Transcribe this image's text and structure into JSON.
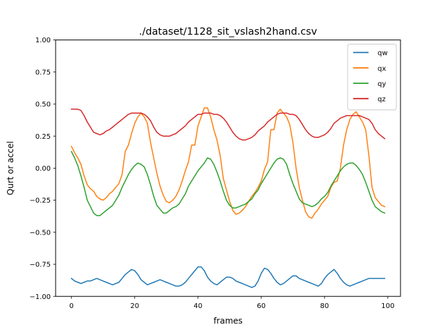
{
  "chart_data": {
    "type": "line",
    "title": "./dataset/1128_sit_vslash2hand.csv",
    "xlabel": "frames",
    "ylabel": "Qurt or accel",
    "xlim": [
      -5,
      104
    ],
    "ylim": [
      -1.0,
      1.0
    ],
    "xticks": [
      0,
      20,
      40,
      60,
      80,
      100
    ],
    "xtick_labels": [
      "0",
      "20",
      "40",
      "60",
      "80",
      "100"
    ],
    "yticks": [
      -1.0,
      -0.75,
      -0.5,
      -0.25,
      0.0,
      0.25,
      0.5,
      0.75,
      1.0
    ],
    "ytick_labels": [
      "−1.00",
      "−0.75",
      "−0.50",
      "−0.25",
      "0.00",
      "0.25",
      "0.50",
      "0.75",
      "1.00"
    ],
    "grid": false,
    "legend_position": "top-right",
    "x": [
      0,
      1,
      2,
      3,
      4,
      5,
      6,
      7,
      8,
      9,
      10,
      11,
      12,
      13,
      14,
      15,
      16,
      17,
      18,
      19,
      20,
      21,
      22,
      23,
      24,
      25,
      26,
      27,
      28,
      29,
      30,
      31,
      32,
      33,
      34,
      35,
      36,
      37,
      38,
      39,
      40,
      41,
      42,
      43,
      44,
      45,
      46,
      47,
      48,
      49,
      50,
      51,
      52,
      53,
      54,
      55,
      56,
      57,
      58,
      59,
      60,
      61,
      62,
      63,
      64,
      65,
      66,
      67,
      68,
      69,
      70,
      71,
      72,
      73,
      74,
      75,
      76,
      77,
      78,
      79,
      80,
      81,
      82,
      83,
      84,
      85,
      86,
      87,
      88,
      89,
      90,
      91,
      92,
      93,
      94,
      95,
      96,
      97,
      98,
      99
    ],
    "series": [
      {
        "name": "qw",
        "color": "#1f77b4",
        "values": [
          -0.86,
          -0.88,
          -0.89,
          -0.9,
          -0.89,
          -0.88,
          -0.88,
          -0.87,
          -0.86,
          -0.87,
          -0.88,
          -0.89,
          -0.9,
          -0.91,
          -0.9,
          -0.89,
          -0.86,
          -0.83,
          -0.81,
          -0.79,
          -0.8,
          -0.83,
          -0.87,
          -0.89,
          -0.91,
          -0.9,
          -0.89,
          -0.88,
          -0.87,
          -0.88,
          -0.89,
          -0.9,
          -0.91,
          -0.92,
          -0.92,
          -0.91,
          -0.89,
          -0.86,
          -0.83,
          -0.8,
          -0.77,
          -0.77,
          -0.8,
          -0.85,
          -0.88,
          -0.9,
          -0.91,
          -0.89,
          -0.87,
          -0.85,
          -0.85,
          -0.86,
          -0.88,
          -0.89,
          -0.9,
          -0.91,
          -0.92,
          -0.93,
          -0.92,
          -0.88,
          -0.82,
          -0.78,
          -0.79,
          -0.82,
          -0.86,
          -0.89,
          -0.91,
          -0.9,
          -0.88,
          -0.86,
          -0.84,
          -0.84,
          -0.86,
          -0.87,
          -0.88,
          -0.89,
          -0.9,
          -0.91,
          -0.92,
          -0.9,
          -0.86,
          -0.83,
          -0.81,
          -0.79,
          -0.82,
          -0.86,
          -0.89,
          -0.91,
          -0.92,
          -0.91,
          -0.9,
          -0.89,
          -0.88,
          -0.87,
          -0.86,
          -0.86,
          -0.86,
          -0.86,
          -0.86,
          -0.86
        ]
      },
      {
        "name": "qx",
        "color": "#ff7f0e",
        "values": [
          0.17,
          0.12,
          0.08,
          0.03,
          -0.06,
          -0.13,
          -0.16,
          -0.18,
          -0.22,
          -0.24,
          -0.25,
          -0.23,
          -0.2,
          -0.18,
          -0.15,
          -0.12,
          -0.05,
          0.13,
          0.18,
          0.27,
          0.35,
          0.4,
          0.43,
          0.4,
          0.35,
          0.2,
          0.08,
          -0.04,
          -0.14,
          -0.21,
          -0.26,
          -0.27,
          -0.25,
          -0.22,
          -0.17,
          -0.1,
          -0.02,
          0.05,
          0.18,
          0.18,
          0.33,
          0.4,
          0.47,
          0.47,
          0.4,
          0.3,
          0.22,
          0.1,
          -0.08,
          -0.17,
          -0.26,
          -0.33,
          -0.36,
          -0.35,
          -0.33,
          -0.3,
          -0.26,
          -0.22,
          -0.19,
          -0.15,
          -0.1,
          -0.01,
          0.05,
          0.3,
          0.3,
          0.43,
          0.46,
          0.43,
          0.4,
          0.34,
          0.2,
          0.0,
          -0.15,
          -0.25,
          -0.34,
          -0.38,
          -0.39,
          -0.35,
          -0.32,
          -0.28,
          -0.25,
          -0.22,
          -0.15,
          -0.11,
          -0.1,
          0.0,
          0.18,
          0.3,
          0.38,
          0.42,
          0.44,
          0.4,
          0.36,
          0.3,
          0.1,
          -0.15,
          -0.23,
          -0.26,
          -0.29,
          -0.3
        ]
      },
      {
        "name": "qy",
        "color": "#2ca02c",
        "values": [
          0.13,
          0.08,
          0.02,
          -0.06,
          -0.15,
          -0.25,
          -0.3,
          -0.35,
          -0.37,
          -0.37,
          -0.35,
          -0.33,
          -0.31,
          -0.29,
          -0.25,
          -0.21,
          -0.15,
          -0.1,
          -0.05,
          -0.01,
          0.02,
          0.04,
          0.03,
          0.01,
          -0.05,
          -0.13,
          -0.22,
          -0.29,
          -0.32,
          -0.35,
          -0.35,
          -0.33,
          -0.31,
          -0.3,
          -0.28,
          -0.24,
          -0.2,
          -0.14,
          -0.1,
          -0.06,
          -0.02,
          0.01,
          0.04,
          0.08,
          0.07,
          0.03,
          -0.03,
          -0.1,
          -0.18,
          -0.25,
          -0.29,
          -0.31,
          -0.31,
          -0.3,
          -0.29,
          -0.28,
          -0.26,
          -0.24,
          -0.2,
          -0.17,
          -0.12,
          -0.08,
          -0.04,
          0.0,
          0.04,
          0.07,
          0.08,
          0.07,
          0.03,
          -0.05,
          -0.12,
          -0.18,
          -0.24,
          -0.27,
          -0.28,
          -0.29,
          -0.3,
          -0.29,
          -0.27,
          -0.24,
          -0.22,
          -0.19,
          -0.14,
          -0.1,
          -0.06,
          -0.02,
          0.01,
          0.03,
          0.04,
          0.04,
          0.02,
          -0.01,
          -0.05,
          -0.11,
          -0.18,
          -0.25,
          -0.3,
          -0.32,
          -0.34,
          -0.35
        ]
      },
      {
        "name": "qz",
        "color": "#d62728",
        "values": [
          0.46,
          0.46,
          0.46,
          0.45,
          0.41,
          0.36,
          0.32,
          0.28,
          0.27,
          0.26,
          0.27,
          0.29,
          0.3,
          0.32,
          0.34,
          0.36,
          0.38,
          0.4,
          0.42,
          0.43,
          0.43,
          0.43,
          0.43,
          0.42,
          0.4,
          0.37,
          0.32,
          0.28,
          0.26,
          0.25,
          0.25,
          0.25,
          0.26,
          0.27,
          0.29,
          0.31,
          0.33,
          0.36,
          0.38,
          0.4,
          0.42,
          0.42,
          0.43,
          0.43,
          0.43,
          0.42,
          0.42,
          0.41,
          0.39,
          0.36,
          0.32,
          0.28,
          0.25,
          0.23,
          0.22,
          0.22,
          0.23,
          0.24,
          0.26,
          0.29,
          0.31,
          0.33,
          0.36,
          0.38,
          0.4,
          0.42,
          0.43,
          0.43,
          0.43,
          0.42,
          0.42,
          0.41,
          0.38,
          0.34,
          0.3,
          0.27,
          0.25,
          0.24,
          0.24,
          0.25,
          0.26,
          0.28,
          0.31,
          0.35,
          0.37,
          0.39,
          0.4,
          0.41,
          0.41,
          0.41,
          0.41,
          0.41,
          0.4,
          0.39,
          0.38,
          0.35,
          0.3,
          0.27,
          0.25,
          0.23
        ]
      }
    ]
  }
}
